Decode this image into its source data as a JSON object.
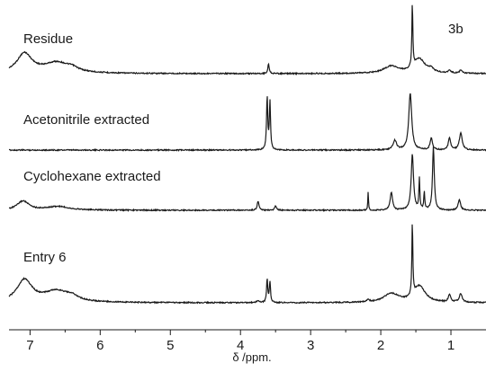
{
  "chart_data": {
    "type": "line",
    "panel_label": "3b",
    "xlabel": "δ /ppm.",
    "x_axis_reversed": true,
    "xlim": [
      7.3,
      0.5
    ],
    "ticks": [
      7,
      6,
      5,
      4,
      3,
      2,
      1
    ],
    "tick_labels": [
      "7",
      "6",
      "5",
      "4",
      "3",
      "2",
      "1"
    ],
    "grid": false,
    "series": [
      {
        "name": "Residue",
        "baseline_offset": 3,
        "peaks": [
          {
            "ppm": 7.08,
            "h": 0.3,
            "w": 0.13
          },
          {
            "ppm": 6.62,
            "h": 0.16,
            "w": 0.22
          },
          {
            "ppm": 6.4,
            "h": 0.05,
            "w": 0.1
          },
          {
            "ppm": 3.6,
            "h": 0.15,
            "w": 0.012
          },
          {
            "ppm": 1.85,
            "h": 0.11,
            "w": 0.13
          },
          {
            "ppm": 1.55,
            "h": 1.0,
            "w": 0.008
          },
          {
            "ppm": 1.45,
            "h": 0.22,
            "w": 0.1
          },
          {
            "ppm": 1.28,
            "h": 0.05,
            "w": 0.04
          },
          {
            "ppm": 1.02,
            "h": 0.05,
            "w": 0.02
          },
          {
            "ppm": 0.86,
            "h": 0.05,
            "w": 0.02
          }
        ]
      },
      {
        "name": "Acetonitrile extracted",
        "baseline_offset": 2,
        "peaks": [
          {
            "ppm": 3.62,
            "h": 0.45,
            "w": 0.01
          },
          {
            "ppm": 3.58,
            "h": 0.4,
            "w": 0.01
          },
          {
            "ppm": 1.8,
            "h": 0.08,
            "w": 0.03
          },
          {
            "ppm": 1.58,
            "h": 0.48,
            "w": 0.025
          },
          {
            "ppm": 1.28,
            "h": 0.1,
            "w": 0.02
          },
          {
            "ppm": 1.02,
            "h": 0.1,
            "w": 0.02
          },
          {
            "ppm": 0.86,
            "h": 0.14,
            "w": 0.025
          }
        ]
      },
      {
        "name": "Cyclohexane extracted",
        "baseline_offset": 1,
        "peaks": [
          {
            "ppm": 7.1,
            "h": 0.1,
            "w": 0.1
          },
          {
            "ppm": 6.6,
            "h": 0.04,
            "w": 0.2
          },
          {
            "ppm": 3.75,
            "h": 0.1,
            "w": 0.015
          },
          {
            "ppm": 3.5,
            "h": 0.05,
            "w": 0.015
          },
          {
            "ppm": 2.18,
            "h": 0.2,
            "w": 0.006
          },
          {
            "ppm": 1.85,
            "h": 0.2,
            "w": 0.02
          },
          {
            "ppm": 1.55,
            "h": 0.62,
            "w": 0.02
          },
          {
            "ppm": 1.45,
            "h": 0.35,
            "w": 0.008
          },
          {
            "ppm": 1.38,
            "h": 0.2,
            "w": 0.008
          },
          {
            "ppm": 1.25,
            "h": 0.7,
            "w": 0.015
          },
          {
            "ppm": 0.88,
            "h": 0.12,
            "w": 0.02
          }
        ]
      },
      {
        "name": "Entry 6",
        "baseline_offset": 0,
        "peaks": [
          {
            "ppm": 7.08,
            "h": 0.3,
            "w": 0.13
          },
          {
            "ppm": 6.62,
            "h": 0.15,
            "w": 0.22
          },
          {
            "ppm": 6.4,
            "h": 0.05,
            "w": 0.1
          },
          {
            "ppm": 3.75,
            "h": 0.03,
            "w": 0.02
          },
          {
            "ppm": 3.62,
            "h": 0.32,
            "w": 0.01
          },
          {
            "ppm": 3.58,
            "h": 0.28,
            "w": 0.01
          },
          {
            "ppm": 2.18,
            "h": 0.03,
            "w": 0.02
          },
          {
            "ppm": 1.85,
            "h": 0.12,
            "w": 0.13
          },
          {
            "ppm": 1.55,
            "h": 1.0,
            "w": 0.008
          },
          {
            "ppm": 1.45,
            "h": 0.22,
            "w": 0.1
          },
          {
            "ppm": 1.02,
            "h": 0.1,
            "w": 0.02
          },
          {
            "ppm": 0.86,
            "h": 0.12,
            "w": 0.025
          }
        ]
      }
    ]
  }
}
